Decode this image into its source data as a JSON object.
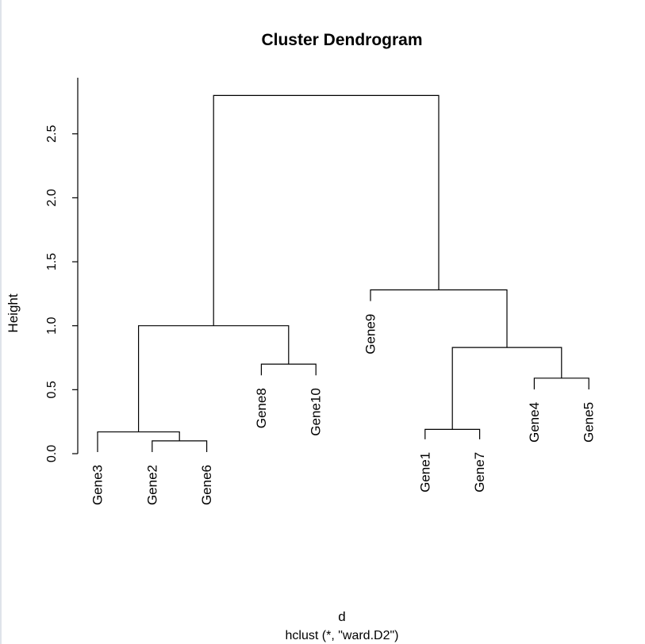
{
  "chart_data": {
    "type": "dendrogram",
    "title": "Cluster Dendrogram",
    "xlabel": "d",
    "sub": "hclust (*, \"ward.D2\")",
    "ylabel": "Height",
    "ylim": [
      0,
      2.8
    ],
    "yticks": [
      0.0,
      0.5,
      1.0,
      1.5,
      2.0,
      2.5
    ],
    "ytick_labels": [
      "0.0",
      "0.5",
      "1.0",
      "1.5",
      "2.0",
      "2.5"
    ],
    "leaves": [
      "Gene3",
      "Gene2",
      "Gene6",
      "Gene8",
      "Gene10",
      "Gene9",
      "Gene1",
      "Gene7",
      "Gene4",
      "Gene5"
    ],
    "leaf_label_heights": [
      0.0,
      0.0,
      0.0,
      0.6,
      0.6,
      1.18,
      0.1,
      0.1,
      0.49,
      0.49
    ],
    "merges": [
      {
        "left": "Gene2",
        "right": "Gene6",
        "height": 0.1
      },
      {
        "left": "Gene3",
        "right": 1,
        "height": 0.17
      },
      {
        "left": "Gene8",
        "right": "Gene10",
        "height": 0.7
      },
      {
        "left": 2,
        "right": 3,
        "height": 1.0
      },
      {
        "left": "Gene1",
        "right": "Gene7",
        "height": 0.19
      },
      {
        "left": "Gene4",
        "right": "Gene5",
        "height": 0.59
      },
      {
        "left": 5,
        "right": 6,
        "height": 0.83
      },
      {
        "left": "Gene9",
        "right": 7,
        "height": 1.28
      },
      {
        "left": 4,
        "right": 8,
        "height": 2.8
      }
    ]
  }
}
